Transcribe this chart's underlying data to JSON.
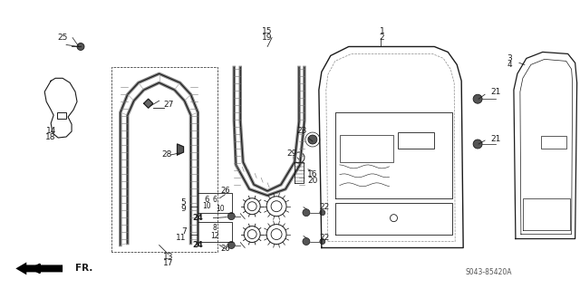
{
  "bg_color": "#ffffff",
  "line_color": "#1a1a1a",
  "text_color": "#1a1a1a",
  "watermark": "S043-85420A",
  "fig_width": 6.4,
  "fig_height": 3.19,
  "dpi": 100
}
